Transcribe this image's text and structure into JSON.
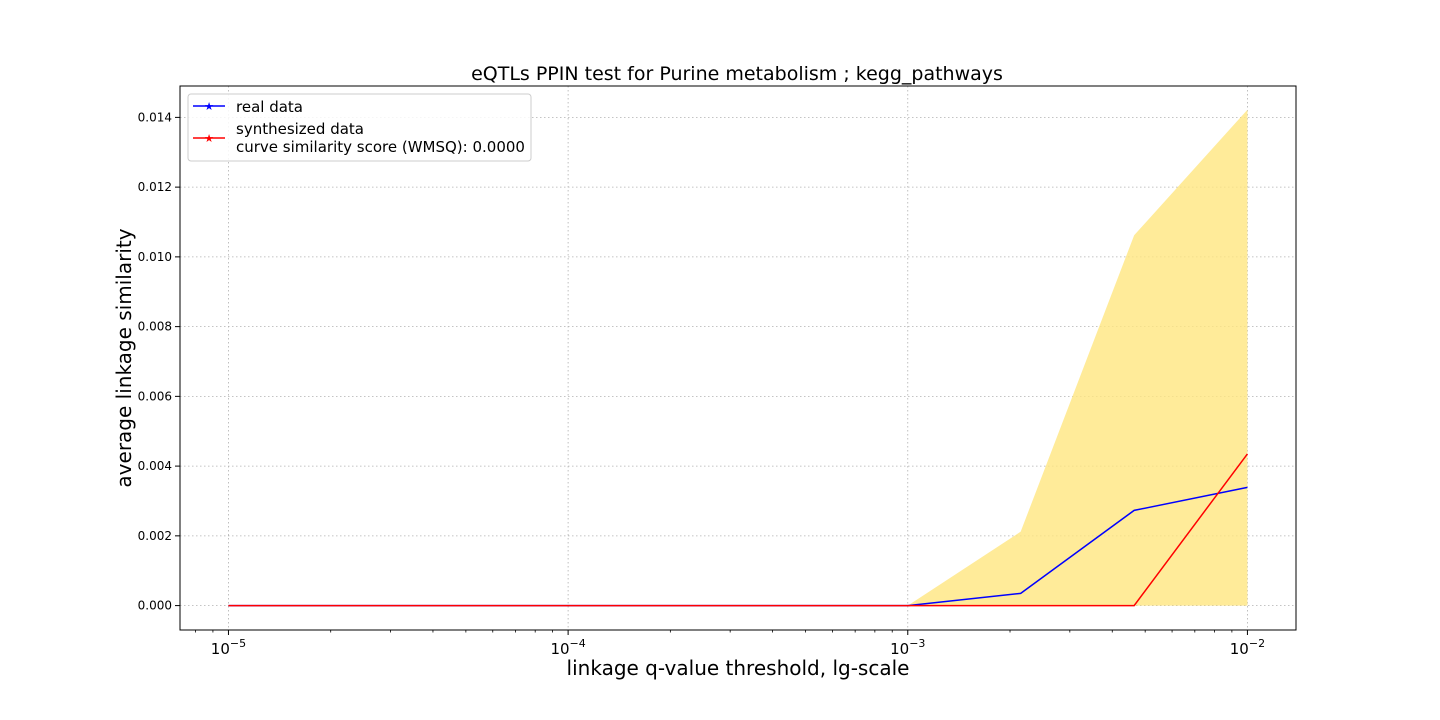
{
  "chart_data": {
    "type": "line",
    "title": "eQTLs PPIN test for Purine metabolism ; kegg_pathways",
    "xlabel": "linkage q-value threshold, lg-scale",
    "ylabel": "average linkage similarity",
    "x_scale": "log",
    "xlim": [
      7.2e-06,
      0.0139
    ],
    "ylim": [
      -0.0007,
      0.0149
    ],
    "x_ticks": [
      {
        "value": 1e-05,
        "base": "10",
        "exponent": "−5"
      },
      {
        "value": 0.0001,
        "base": "10",
        "exponent": "−4"
      },
      {
        "value": 0.001,
        "base": "10",
        "exponent": "−3"
      },
      {
        "value": 0.01,
        "base": "10",
        "exponent": "−2"
      }
    ],
    "y_ticks": [
      0.0,
      0.002,
      0.004,
      0.006,
      0.008,
      0.01,
      0.012,
      0.014
    ],
    "y_tick_labels": [
      "0.000",
      "0.002",
      "0.004",
      "0.006",
      "0.008",
      "0.010",
      "0.012",
      "0.014"
    ],
    "grid": true,
    "legend_position": "top-left",
    "x": [
      1e-05,
      2.15e-05,
      4.64e-05,
      0.0001,
      0.000215,
      0.000464,
      0.001,
      0.00215,
      0.00464,
      0.01
    ],
    "series": [
      {
        "name": "real data",
        "color": "#0000ff",
        "values": [
          0,
          0,
          0,
          0,
          0,
          0,
          0,
          0.00035,
          0.00273,
          0.00339
        ]
      },
      {
        "name": "synthesized data\ncurve similarity score (WMSQ): 0.0000",
        "color": "#ff0000",
        "values": [
          0,
          0,
          0,
          0,
          0,
          0,
          0,
          0,
          0,
          0.00435
        ]
      }
    ],
    "band": {
      "color": "#ffe680",
      "lower": [
        0,
        0,
        0,
        0,
        0,
        0,
        0,
        0,
        0,
        0
      ],
      "upper": [
        0,
        0,
        0,
        0,
        0,
        0,
        0,
        0.00212,
        0.01062,
        0.01422
      ]
    }
  }
}
